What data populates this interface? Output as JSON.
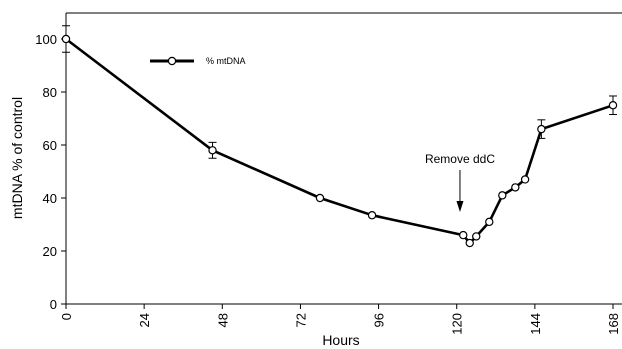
{
  "chart_data": {
    "type": "line",
    "title": "",
    "xlabel": "Hours",
    "ylabel": "mtDNA % of control",
    "xlim": [
      0,
      170
    ],
    "ylim": [
      0,
      110
    ],
    "xticks": [
      0,
      24,
      48,
      72,
      96,
      120,
      144,
      168
    ],
    "yticks": [
      0,
      20,
      40,
      60,
      80,
      100
    ],
    "grid": false,
    "legend_position": "top-left",
    "series": [
      {
        "name": "% mtDNA",
        "marker": "open-circle",
        "color": "#000000",
        "x": [
          0,
          45,
          78,
          94,
          122,
          124,
          126,
          130,
          134,
          138,
          141,
          146,
          168
        ],
        "y": [
          100,
          58,
          40,
          33.5,
          26,
          23,
          25.5,
          31,
          41,
          44,
          47,
          66,
          75
        ],
        "error": [
          5,
          3,
          0,
          0,
          0,
          0,
          0,
          0,
          0,
          0,
          0,
          3.5,
          3.5
        ]
      }
    ],
    "annotations": [
      {
        "text": "Remove ddC",
        "x": 121
      }
    ]
  }
}
